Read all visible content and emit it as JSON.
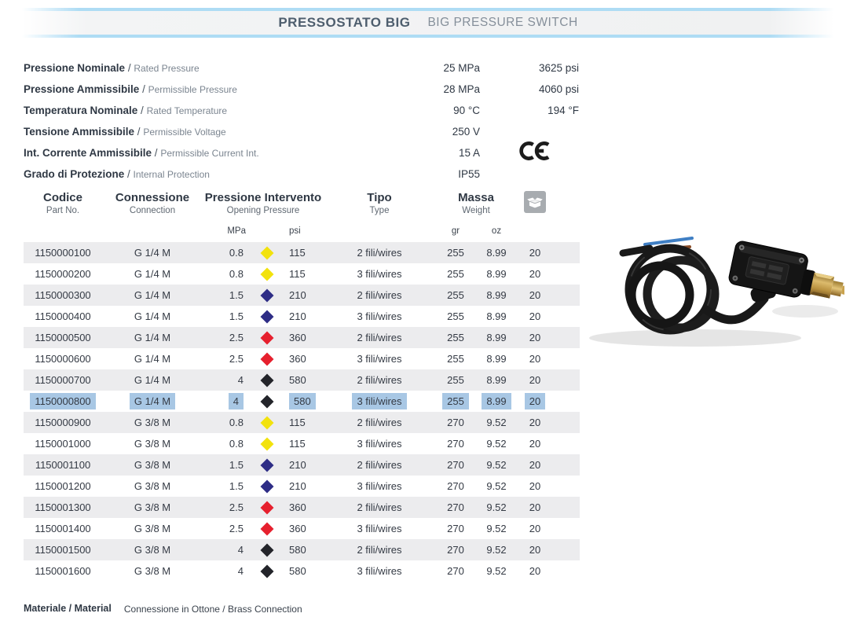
{
  "header": {
    "title_it": "PRESSOSTATO BIG",
    "title_en": "BIG PRESSURE SWITCH"
  },
  "sep": " / ",
  "specs": [
    {
      "it": "Pressione Nominale",
      "en": "Rated Pressure",
      "metric": "25 MPa",
      "imperial": "3625 psi"
    },
    {
      "it": "Pressione Ammissibile",
      "en": "Permissible Pressure",
      "metric": "28 MPa",
      "imperial": "4060 psi"
    },
    {
      "it": "Temperatura Nominale",
      "en": "Rated Temperature",
      "metric": "90 °C",
      "imperial": "194 °F"
    },
    {
      "it": "Tensione Ammissibile",
      "en": "Permissible Voltage",
      "metric": "250 V",
      "imperial": ""
    },
    {
      "it": "Int. Corrente Ammissibile",
      "en": "Permissible Current Int.",
      "metric": "15 A",
      "imperial": ""
    },
    {
      "it": "Grado di Protezione",
      "en": "Internal Protection",
      "metric": "IP55",
      "imperial": ""
    }
  ],
  "certification": {
    "icon": "ce-mark"
  },
  "table": {
    "headers": {
      "code_it": "Codice",
      "code_en": "Part No.",
      "conn_it": "Connessione",
      "conn_en": "Connection",
      "press_it": "Pressione Intervento",
      "press_en": "Opening Pressure",
      "type_it": "Tipo",
      "type_en": "Type",
      "mass_it": "Massa",
      "mass_en": "Weight",
      "qty_icon": "box-icon"
    },
    "units": {
      "mpa": "MPa",
      "psi": "psi",
      "gr": "gr",
      "oz": "oz"
    },
    "rows": [
      {
        "code": "1150000100",
        "connection": "G 1/4 M",
        "mpa": "0.8",
        "diamond": "yellow",
        "psi": "115",
        "type": "2 fili/wires",
        "gr": "255",
        "oz": "8.99",
        "qty": "20",
        "selected": false
      },
      {
        "code": "1150000200",
        "connection": "G 1/4 M",
        "mpa": "0.8",
        "diamond": "yellow",
        "psi": "115",
        "type": "3 fili/wires",
        "gr": "255",
        "oz": "8.99",
        "qty": "20",
        "selected": false
      },
      {
        "code": "1150000300",
        "connection": "G 1/4 M",
        "mpa": "1.5",
        "diamond": "navy",
        "psi": "210",
        "type": "2 fili/wires",
        "gr": "255",
        "oz": "8.99",
        "qty": "20",
        "selected": false
      },
      {
        "code": "1150000400",
        "connection": "G 1/4 M",
        "mpa": "1.5",
        "diamond": "navy",
        "psi": "210",
        "type": "3 fili/wires",
        "gr": "255",
        "oz": "8.99",
        "qty": "20",
        "selected": false
      },
      {
        "code": "1150000500",
        "connection": "G 1/4 M",
        "mpa": "2.5",
        "diamond": "red",
        "psi": "360",
        "type": "2 fili/wires",
        "gr": "255",
        "oz": "8.99",
        "qty": "20",
        "selected": false
      },
      {
        "code": "1150000600",
        "connection": "G 1/4 M",
        "mpa": "2.5",
        "diamond": "red",
        "psi": "360",
        "type": "3 fili/wires",
        "gr": "255",
        "oz": "8.99",
        "qty": "20",
        "selected": false
      },
      {
        "code": "1150000700",
        "connection": "G 1/4 M",
        "mpa": "4",
        "diamond": "black",
        "psi": "580",
        "type": "2 fili/wires",
        "gr": "255",
        "oz": "8.99",
        "qty": "20",
        "selected": false
      },
      {
        "code": "1150000800",
        "connection": "G 1/4 M",
        "mpa": "4",
        "diamond": "black",
        "psi": "580",
        "type": "3 fili/wires",
        "gr": "255",
        "oz": "8.99",
        "qty": "20",
        "selected": true
      },
      {
        "code": "1150000900",
        "connection": "G 3/8 M",
        "mpa": "0.8",
        "diamond": "yellow",
        "psi": "115",
        "type": "2 fili/wires",
        "gr": "270",
        "oz": "9.52",
        "qty": "20",
        "selected": false
      },
      {
        "code": "1150001000",
        "connection": "G 3/8 M",
        "mpa": "0.8",
        "diamond": "yellow",
        "psi": "115",
        "type": "3 fili/wires",
        "gr": "270",
        "oz": "9.52",
        "qty": "20",
        "selected": false
      },
      {
        "code": "1150001100",
        "connection": "G 3/8 M",
        "mpa": "1.5",
        "diamond": "navy",
        "psi": "210",
        "type": "2 fili/wires",
        "gr": "270",
        "oz": "9.52",
        "qty": "20",
        "selected": false
      },
      {
        "code": "1150001200",
        "connection": "G 3/8 M",
        "mpa": "1.5",
        "diamond": "navy",
        "psi": "210",
        "type": "3 fili/wires",
        "gr": "270",
        "oz": "9.52",
        "qty": "20",
        "selected": false
      },
      {
        "code": "1150001300",
        "connection": "G 3/8 M",
        "mpa": "2.5",
        "diamond": "red",
        "psi": "360",
        "type": "2 fili/wires",
        "gr": "270",
        "oz": "9.52",
        "qty": "20",
        "selected": false
      },
      {
        "code": "1150001400",
        "connection": "G 3/8 M",
        "mpa": "2.5",
        "diamond": "red",
        "psi": "360",
        "type": "3 fili/wires",
        "gr": "270",
        "oz": "9.52",
        "qty": "20",
        "selected": false
      },
      {
        "code": "1150001500",
        "connection": "G 3/8 M",
        "mpa": "4",
        "diamond": "black",
        "psi": "580",
        "type": "2 fili/wires",
        "gr": "270",
        "oz": "9.52",
        "qty": "20",
        "selected": false
      },
      {
        "code": "1150001600",
        "connection": "G 3/8 M",
        "mpa": "4",
        "diamond": "black",
        "psi": "580",
        "type": "3 fili/wires",
        "gr": "270",
        "oz": "9.52",
        "qty": "20",
        "selected": false
      }
    ]
  },
  "diamond_colors": {
    "yellow": "#f2e20d",
    "navy": "#2e2d86",
    "red": "#e6202e",
    "black": "#23242a"
  },
  "footer": {
    "material_label": "Materiale / Material",
    "material_value": "Connessione in Ottone  / Brass Connection"
  }
}
